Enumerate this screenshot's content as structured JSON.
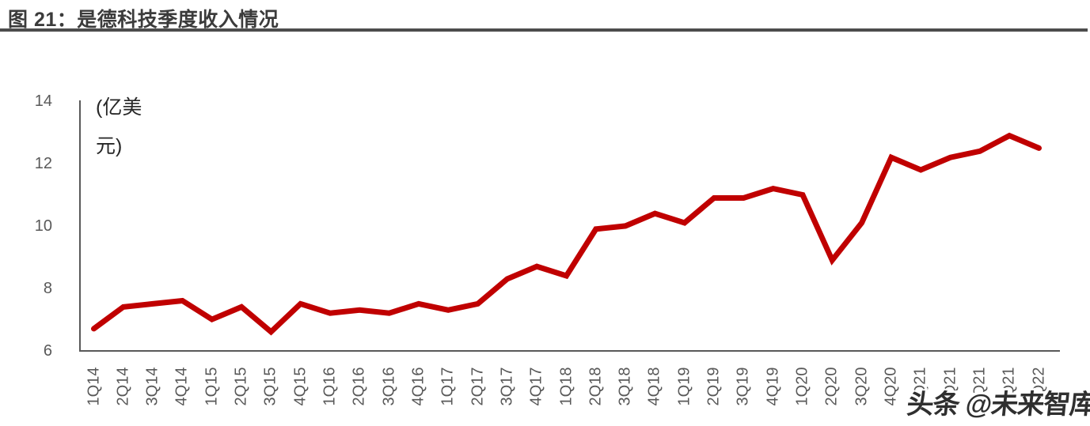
{
  "header": {
    "title": "图 21：是德科技季度收入情况"
  },
  "watermark": {
    "text": "头条 @未来智库"
  },
  "chart_data": {
    "type": "line",
    "title": "图 21：是德科技季度收入情况",
    "unit_label": "(亿美元)",
    "unit_label_lines": [
      "(亿美",
      "元)"
    ],
    "categories": [
      "1Q14",
      "2Q14",
      "3Q14",
      "4Q14",
      "1Q15",
      "2Q15",
      "3Q15",
      "4Q15",
      "1Q16",
      "2Q16",
      "3Q16",
      "4Q16",
      "1Q17",
      "2Q17",
      "3Q17",
      "4Q17",
      "1Q18",
      "2Q18",
      "3Q18",
      "4Q18",
      "1Q19",
      "2Q19",
      "3Q19",
      "4Q19",
      "1Q20",
      "2Q20",
      "3Q20",
      "4Q20",
      "1Q21",
      "2Q21",
      "3Q21",
      "4Q21",
      "1Q22"
    ],
    "values": [
      6.7,
      7.4,
      7.5,
      7.6,
      7.0,
      7.4,
      6.6,
      7.5,
      7.2,
      7.3,
      7.2,
      7.5,
      7.3,
      7.5,
      8.3,
      8.7,
      8.4,
      9.9,
      10.0,
      10.4,
      10.1,
      10.9,
      10.9,
      11.2,
      11.0,
      8.9,
      10.1,
      12.2,
      11.8,
      12.2,
      12.4,
      12.9,
      12.5
    ],
    "ylim": [
      6,
      14
    ],
    "yticks": [
      6,
      8,
      10,
      12,
      14
    ],
    "xlabel": "",
    "ylabel": "(亿美元)",
    "grid": false,
    "legend_position": "none",
    "line_color": "#C00000",
    "axis_color": "#595959",
    "tick_label_color": "#595959"
  }
}
